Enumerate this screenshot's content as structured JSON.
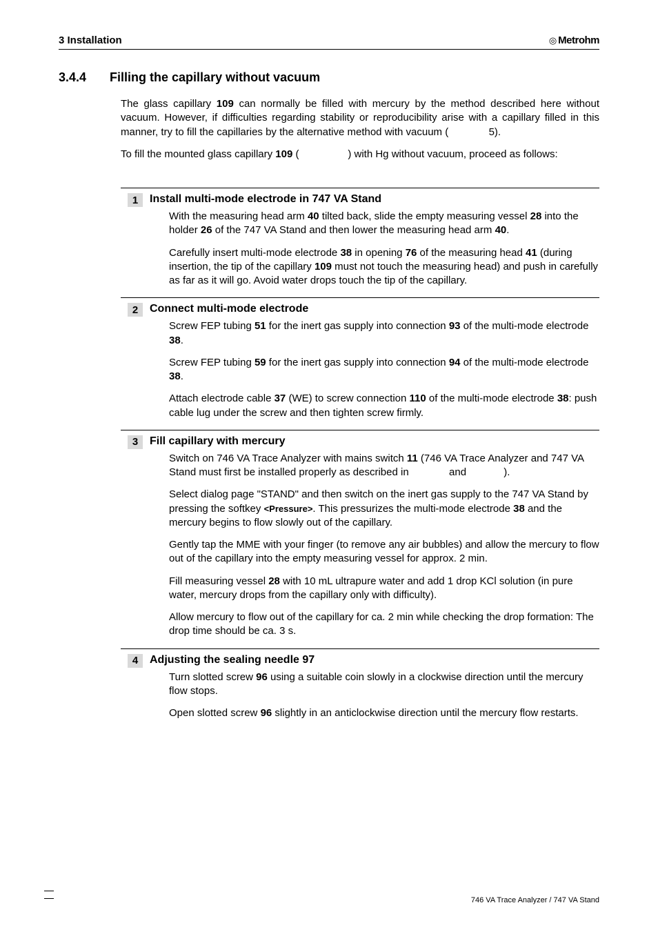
{
  "header": {
    "left": "3  Installation",
    "brand_icon": "◎",
    "brand": "Metrohm"
  },
  "section": {
    "num": "3.4.4",
    "title": "Filling the capillary without vacuum",
    "intro_parts": [
      "The glass capillary ",
      " can normally be filled with mercury by the method described here without vacuum. However, if difficulties regarding stability or reproducibility arise with a capillary filled in this manner, try to fill the capillaries by the alternative method with vacuum (",
      ")."
    ],
    "intro_b1": "109",
    "intro_link1": "5",
    "intro2_parts": [
      "To fill the mounted glass capillary ",
      " (",
      ") with Hg without vacuum, proceed as follows:"
    ],
    "intro2_b1": "109",
    "intro2_gap": " "
  },
  "steps": [
    {
      "num": "1",
      "title": "Install multi-mode electrode in 747 VA Stand",
      "paras": [
        "With the measuring head arm <b>40</b> tilted back, slide the empty measuring vessel <b>28</b> into the holder <b>26</b> of the 747 VA Stand and then lower the measuring head arm <b>40</b>.",
        "Carefully insert multi-mode electrode <b>38</b> in opening <b>76</b> of the measuring head <b>41</b> (during insertion, the tip of the capillary <b>109</b> must not touch the measuring head) and push in carefully as far as it will go. Avoid water drops touch the tip of the capillary."
      ]
    },
    {
      "num": "2",
      "title": "Connect multi-mode electrode",
      "paras": [
        "Screw FEP tubing <b>51</b> for the inert gas supply into connection <b>93</b> of the multi-mode electrode <b>38</b>.",
        "Screw FEP tubing <b>59</b> for the inert gas supply into connection <b>94</b> of the multi-mode electrode <b>38</b>.",
        "Attach electrode cable <b>37</b> (WE) to screw connection <b>110</b> of the multi-mode electrode <b>38</b>: push cable lug under the screw and then tighten screw firmly."
      ]
    },
    {
      "num": "3",
      "title": "Fill capillary with mercury",
      "paras": [
        "Switch on 746 VA Trace Analyzer with mains switch <b>11</b> (746 VA Trace Analyzer and 747 VA Stand must first be installed properly as described in              and             ).",
        "Select dialog page \"STAND\" and then switch on the inert gas supply to the 747 VA Stand by pressing the softkey <span class=\"soft\">&lt;Pressure&gt;</span>. This pressurizes the multi-mode electrode <b>38</b> and the mercury begins to flow slowly out of the capillary.",
        "Gently tap the MME with your finger (to remove any air bubbles) and allow the mercury to flow out of the capillary into the empty measuring vessel for approx. 2 min.",
        "Fill measuring vessel <b>28</b> with 10 mL ultrapure water and add 1 drop KCl solution (in pure water, mercury drops from the capillary only with difficulty).",
        "Allow mercury to flow out of the capillary for ca. 2 min while checking the drop formation: The drop time should be ca. 3 s."
      ]
    },
    {
      "num": "4",
      "title_parts": [
        "Adjusting the sealing needle ",
        "97"
      ],
      "paras": [
        "Turn slotted screw <b>96</b> using a suitable coin slowly in a clockwise direction until the mercury flow stops.",
        "Open slotted screw <b>96</b> slightly in an anticlockwise direction until the mercury flow restarts."
      ]
    }
  ],
  "footer": {
    "page": "",
    "right": "746 VA Trace Analyzer / 747 VA Stand"
  }
}
